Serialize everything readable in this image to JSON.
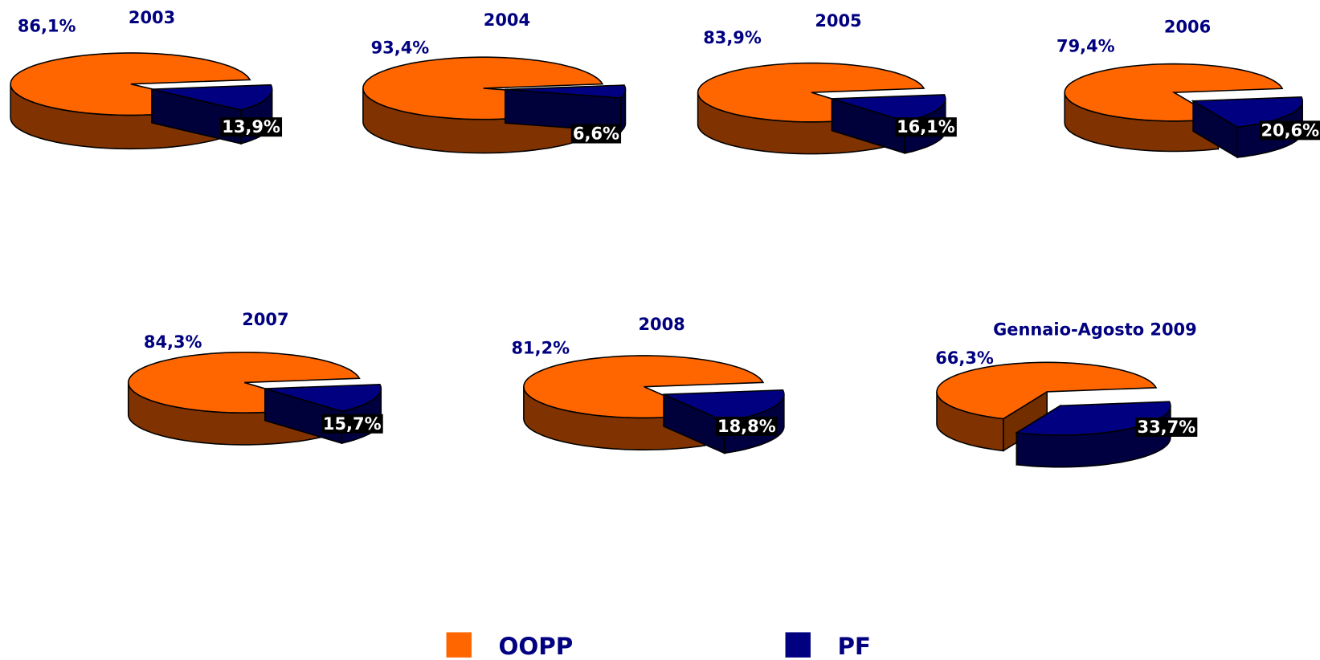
{
  "chart_data": [
    {
      "type": "pie",
      "title": "2003",
      "categories": [
        "OOPP",
        "PF"
      ],
      "values": [
        86.1,
        13.9
      ],
      "value_labels": [
        "86,1%",
        "13,9%"
      ],
      "colors": [
        "#ff6600",
        "#000080"
      ]
    },
    {
      "type": "pie",
      "title": "2004",
      "categories": [
        "OOPP",
        "PF"
      ],
      "values": [
        93.4,
        6.6
      ],
      "value_labels": [
        "93,4%",
        "6,6%"
      ],
      "colors": [
        "#ff6600",
        "#000080"
      ]
    },
    {
      "type": "pie",
      "title": "2005",
      "categories": [
        "OOPP",
        "PF"
      ],
      "values": [
        83.9,
        16.1
      ],
      "value_labels": [
        "83,9%",
        "16,1%"
      ],
      "colors": [
        "#ff6600",
        "#000080"
      ]
    },
    {
      "type": "pie",
      "title": "2006",
      "categories": [
        "OOPP",
        "PF"
      ],
      "values": [
        79.4,
        20.6
      ],
      "value_labels": [
        "79,4%",
        "20,6%"
      ],
      "colors": [
        "#ff6600",
        "#000080"
      ]
    },
    {
      "type": "pie",
      "title": "2007",
      "categories": [
        "OOPP",
        "PF"
      ],
      "values": [
        84.3,
        15.7
      ],
      "value_labels": [
        "84,3%",
        "15,7%"
      ],
      "colors": [
        "#ff6600",
        "#000080"
      ]
    },
    {
      "type": "pie",
      "title": "2008",
      "categories": [
        "OOPP",
        "PF"
      ],
      "values": [
        81.2,
        18.8
      ],
      "value_labels": [
        "81,2%",
        "18,8%"
      ],
      "colors": [
        "#ff6600",
        "#000080"
      ]
    },
    {
      "type": "pie",
      "title": "Gennaio-Agosto 2009",
      "categories": [
        "OOPP",
        "PF"
      ],
      "values": [
        66.3,
        33.7
      ],
      "value_labels": [
        "66,3%",
        "33,7%"
      ],
      "colors": [
        "#ff6600",
        "#000080"
      ]
    }
  ]
}
